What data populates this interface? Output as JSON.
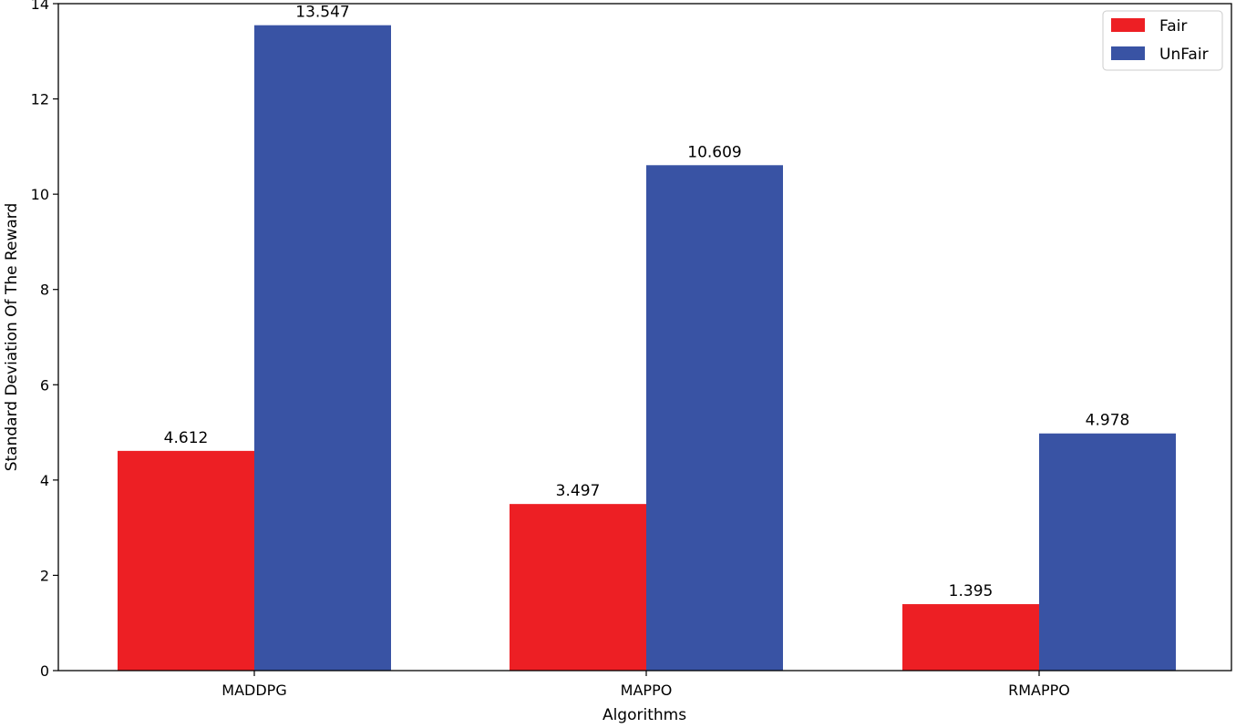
{
  "chart_data": {
    "type": "bar",
    "categories": [
      "MADDPG",
      "MAPPO",
      "RMAPPO"
    ],
    "series": [
      {
        "name": "Fair",
        "values": [
          4.612,
          3.497,
          1.395
        ],
        "color": "#ed1f24"
      },
      {
        "name": "UnFair",
        "values": [
          13.547,
          10.609,
          4.978
        ],
        "color": "#3953a4"
      }
    ],
    "data_labels": [
      [
        "4.612",
        "3.497",
        "1.395"
      ],
      [
        "13.547",
        "10.609",
        "4.978"
      ]
    ],
    "title": "",
    "xlabel": "Algorithms",
    "ylabel": "Standard Deviation Of The Reward",
    "ylim": [
      0,
      14
    ],
    "yticks": [
      0,
      2,
      4,
      6,
      8,
      10,
      12,
      14
    ],
    "ytick_labels": [
      "0",
      "2",
      "4",
      "6",
      "8",
      "10",
      "12",
      "14"
    ],
    "grid": false,
    "legend_position": "top-right"
  }
}
